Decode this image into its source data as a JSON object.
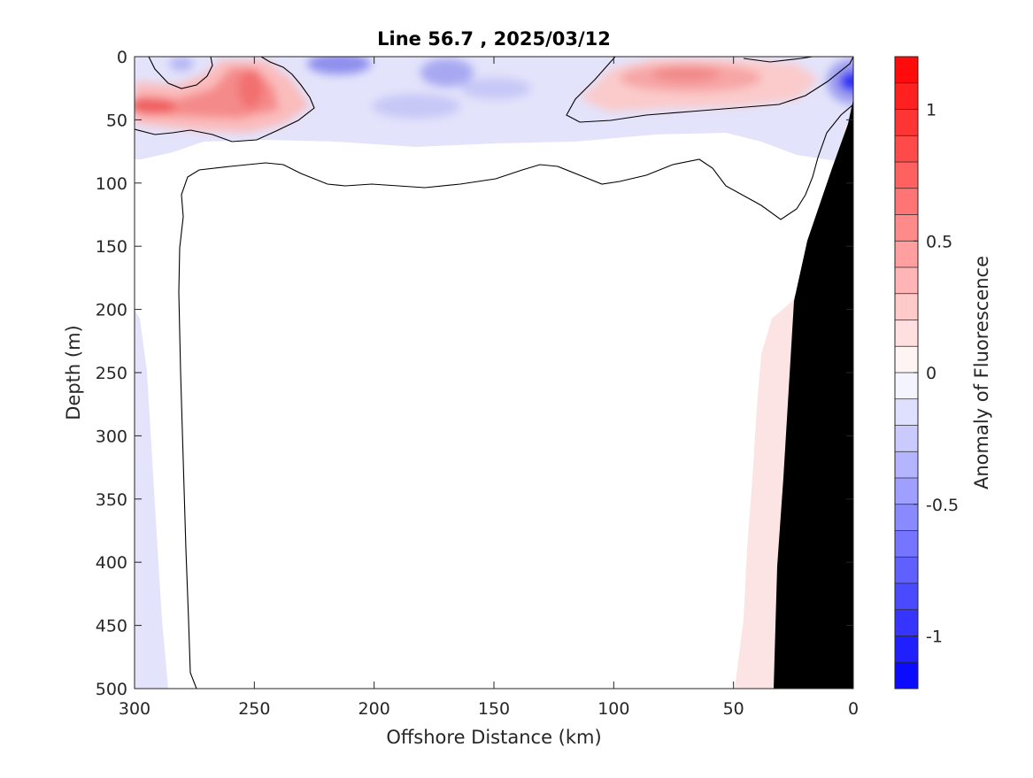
{
  "chart_data": {
    "type": "heatmap",
    "title": "Line 56.7 , 2025/03/12",
    "xlabel": "Offshore Distance (km)",
    "ylabel": "Depth (m)",
    "colorbar_label": "Anomaly of Fluorescence",
    "xlim": [
      300,
      0
    ],
    "ylim": [
      0,
      500
    ],
    "x_reversed": true,
    "y_reversed": true,
    "x_ticks": [
      "300",
      "250",
      "200",
      "150",
      "100",
      "50",
      "0"
    ],
    "y_ticks": [
      "0",
      "50",
      "100",
      "150",
      "200",
      "250",
      "300",
      "350",
      "400",
      "450",
      "500"
    ],
    "colorbar": {
      "range": [
        -1.2,
        1.2
      ],
      "ticks": [
        "1",
        "0.5",
        "0",
        "-0.5",
        "-1"
      ],
      "tick_values": [
        1,
        0.5,
        0,
        -0.5,
        -1
      ],
      "level_step": 0.1,
      "colors": {
        "max": "#ff0000",
        "mid": "#ffffff",
        "min": "#0000ff"
      }
    },
    "anomaly_features": [
      {
        "name": "positive anomaly, offshore subsurface",
        "x_range_km": [
          300,
          240
        ],
        "depth_range_m": [
          5,
          55
        ],
        "peak_km": 250,
        "peak_depth_m": 30,
        "peak_value": 0.4
      },
      {
        "name": "negative anomaly, near surface",
        "x_range_km": [
          230,
          150
        ],
        "depth_range_m": [
          0,
          60
        ],
        "peak_km": 215,
        "peak_depth_m": 5,
        "peak_value": -0.3
      },
      {
        "name": "positive anomaly, nearshore surface",
        "x_range_km": [
          105,
          15
        ],
        "depth_range_m": [
          0,
          40
        ],
        "peak_km": 65,
        "peak_depth_m": 15,
        "peak_value": 0.35
      },
      {
        "name": "negative anomaly, coast",
        "x_range_km": [
          10,
          0
        ],
        "depth_range_m": [
          0,
          40
        ],
        "peak_km": 0,
        "peak_depth_m": 20,
        "peak_value": -0.6
      },
      {
        "name": "weak positive band, slope",
        "x_range_km": [
          50,
          30
        ],
        "depth_range_m": [
          200,
          500
        ],
        "peak_value": 0.1
      },
      {
        "name": "weak negative band, offshore edge",
        "x_range_km": [
          300,
          285
        ],
        "depth_range_m": [
          200,
          500
        ],
        "peak_value": -0.1
      }
    ],
    "contour_level": 0,
    "bathymetry_mask": {
      "color": "#000000",
      "description": "sea floor"
    }
  }
}
